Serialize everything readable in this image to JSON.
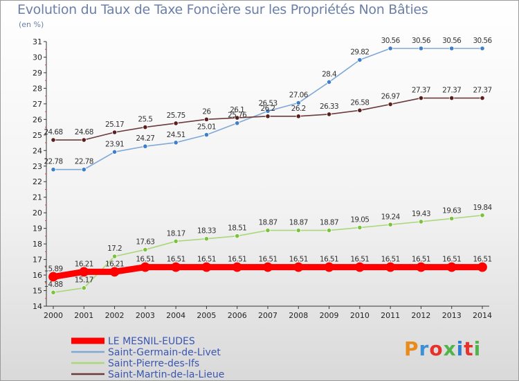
{
  "title": "Evolution du Taux de Taxe Foncière sur les Propriétés Non Bâties",
  "unit_label": "(en %)",
  "logo": {
    "text": "Proxiti",
    "colors": [
      "#e98b1b",
      "#3d8fd6",
      "#e5322d",
      "#4fb54a",
      "#2f7fd0",
      "#e5322d",
      "#4fb54a"
    ]
  },
  "chart_data": {
    "type": "line",
    "x": [
      "2000",
      "2001",
      "2002",
      "2003",
      "2004",
      "2005",
      "2006",
      "2007",
      "2008",
      "2009",
      "2010",
      "2011",
      "2012",
      "2013",
      "2014"
    ],
    "ylim": [
      14,
      31
    ],
    "yticks": [
      14,
      15,
      16,
      17,
      18,
      19,
      20,
      21,
      22,
      23,
      24,
      25,
      26,
      27,
      28,
      29,
      30,
      31
    ],
    "grid": false,
    "legend_position": "bottom-left",
    "series": [
      {
        "name": "LE MESNIL-EUDES",
        "color": "#ff0000",
        "marker": "#ff0000",
        "thick": true,
        "values": [
          15.89,
          16.21,
          16.21,
          16.51,
          16.51,
          16.51,
          16.51,
          16.51,
          16.51,
          16.51,
          16.51,
          16.51,
          16.51,
          16.51,
          16.51
        ],
        "labels": [
          "15.89",
          "16.21",
          "16.21",
          "16.51",
          "16.51",
          "16.51",
          "16.51",
          "16.51",
          "16.51",
          "16.51",
          "16.51",
          "16.51",
          "16.51",
          "16.51",
          "16.51"
        ]
      },
      {
        "name": "Saint-Germain-de-Livet",
        "color": "#7fa8d8",
        "marker": "#3f7fc8",
        "thick": false,
        "values": [
          22.78,
          22.78,
          23.91,
          24.27,
          24.51,
          25.01,
          25.76,
          26.53,
          27.06,
          28.4,
          29.82,
          30.56,
          30.56,
          30.56,
          30.56
        ],
        "labels": [
          "22.78",
          "22.78",
          "23.91",
          "24.27",
          "24.51",
          "25.01",
          "25.76",
          "26.53",
          "27.06",
          "28.4",
          "29.82",
          "30.56",
          "30.56",
          "30.56",
          "30.56"
        ]
      },
      {
        "name": "Saint-Pierre-des-Ifs",
        "color": "#a8d878",
        "marker": "#7cc23f",
        "thick": false,
        "values": [
          14.88,
          15.17,
          17.2,
          17.63,
          18.17,
          18.33,
          18.51,
          18.87,
          18.87,
          18.87,
          19.05,
          19.24,
          19.43,
          19.63,
          19.84
        ],
        "labels": [
          "14.88",
          "15.17",
          "17.2",
          "17.63",
          "18.17",
          "18.33",
          "18.51",
          "18.87",
          "18.87",
          "18.87",
          "19.05",
          "19.24",
          "19.43",
          "19.63",
          "19.84"
        ]
      },
      {
        "name": "Saint-Martin-de-la-Lieue",
        "color": "#6b3a3a",
        "marker": "#5a1f1f",
        "thick": false,
        "values": [
          24.68,
          24.68,
          25.17,
          25.5,
          25.75,
          26.0,
          26.1,
          26.2,
          26.2,
          26.33,
          26.58,
          26.97,
          27.37,
          27.37,
          27.37
        ],
        "labels": [
          "24.68",
          "24.68",
          "25.17",
          "25.5",
          "25.75",
          "26",
          "26.1",
          "26.2",
          "26.2",
          "26.33",
          "26.58",
          "26.97",
          "27.37",
          "27.37",
          "27.37"
        ]
      }
    ]
  }
}
